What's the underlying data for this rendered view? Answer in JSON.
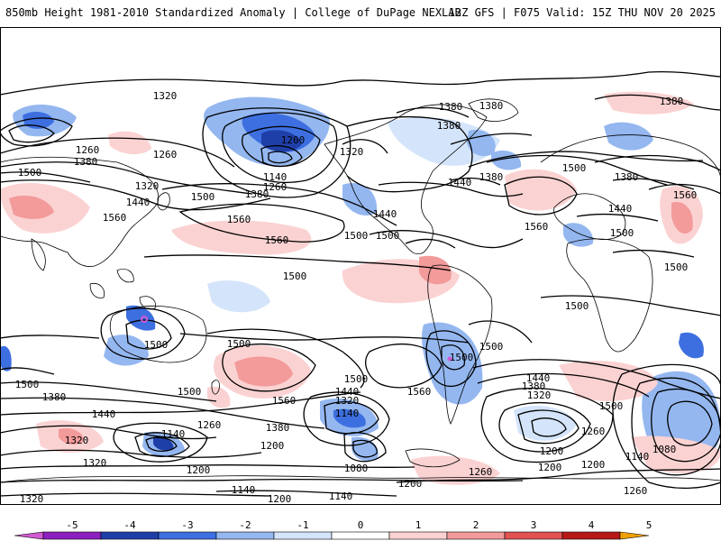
{
  "header": {
    "title": "850mb Height 1981-2010 Standardized Anomaly | College of DuPage NEXLAB",
    "run_info": "12Z GFS | F075 Valid: 15Z THU NOV 20 2025"
  },
  "map": {
    "projection": "global",
    "contour_labels": [
      {
        "id": "c1",
        "text": "1320"
      },
      {
        "id": "c2",
        "text": "1380"
      },
      {
        "id": "c3",
        "text": "1260"
      },
      {
        "id": "c4",
        "text": "1260"
      },
      {
        "id": "c5",
        "text": "1200"
      },
      {
        "id": "c6",
        "text": "1320"
      },
      {
        "id": "c7",
        "text": "1140"
      },
      {
        "id": "c8",
        "text": "1260"
      },
      {
        "id": "c9",
        "text": "1380"
      },
      {
        "id": "c10",
        "text": "1500"
      },
      {
        "id": "c11",
        "text": "1380"
      },
      {
        "id": "c12",
        "text": "1440"
      },
      {
        "id": "c13",
        "text": "1320"
      },
      {
        "id": "c14",
        "text": "1500"
      },
      {
        "id": "c15",
        "text": "1560"
      },
      {
        "id": "c16",
        "text": "1560"
      },
      {
        "id": "c17",
        "text": "1560"
      },
      {
        "id": "c18",
        "text": "1500"
      },
      {
        "id": "c19",
        "text": "1500"
      },
      {
        "id": "c20",
        "text": "1500"
      },
      {
        "id": "c21",
        "text": "1500"
      },
      {
        "id": "c22",
        "text": "1500"
      },
      {
        "id": "c23",
        "text": "1380"
      },
      {
        "id": "c24",
        "text": "1440"
      },
      {
        "id": "c25",
        "text": "1320"
      },
      {
        "id": "c26",
        "text": "1260"
      },
      {
        "id": "c27",
        "text": "1320"
      },
      {
        "id": "c28",
        "text": "1140"
      },
      {
        "id": "c29",
        "text": "1200"
      },
      {
        "id": "c30",
        "text": "1140"
      },
      {
        "id": "c31",
        "text": "1320"
      },
      {
        "id": "c32",
        "text": "1260"
      },
      {
        "id": "c33",
        "text": "1200"
      },
      {
        "id": "c34",
        "text": "1560"
      },
      {
        "id": "c35",
        "text": "1380"
      },
      {
        "id": "c36",
        "text": "1500"
      },
      {
        "id": "c37",
        "text": "1440"
      },
      {
        "id": "c38",
        "text": "1320"
      },
      {
        "id": "c39",
        "text": "1140"
      },
      {
        "id": "c40",
        "text": "1200"
      },
      {
        "id": "c41",
        "text": "1080"
      },
      {
        "id": "c42",
        "text": "1200"
      },
      {
        "id": "c43",
        "text": "1140"
      },
      {
        "id": "c44",
        "text": "1380"
      },
      {
        "id": "c45",
        "text": "1380"
      },
      {
        "id": "c46",
        "text": "1320"
      },
      {
        "id": "c47",
        "text": "1440"
      },
      {
        "id": "c48",
        "text": "1560"
      },
      {
        "id": "c49",
        "text": "1500"
      },
      {
        "id": "c50",
        "text": "1500"
      },
      {
        "id": "c51",
        "text": "1500"
      },
      {
        "id": "c52",
        "text": "1500"
      },
      {
        "id": "c53",
        "text": "1560"
      },
      {
        "id": "c54",
        "text": "1440"
      },
      {
        "id": "c55",
        "text": "1380"
      },
      {
        "id": "c56",
        "text": "1320"
      },
      {
        "id": "c57",
        "text": "1500"
      },
      {
        "id": "c58",
        "text": "1260"
      },
      {
        "id": "c59",
        "text": "1200"
      },
      {
        "id": "c60",
        "text": "1260"
      },
      {
        "id": "c61",
        "text": "1200"
      },
      {
        "id": "c62",
        "text": "1080"
      },
      {
        "id": "c63",
        "text": "1140"
      },
      {
        "id": "c64",
        "text": "1200"
      },
      {
        "id": "c65",
        "text": "1260"
      },
      {
        "id": "c66",
        "text": "1380"
      },
      {
        "id": "c67",
        "text": "1560"
      },
      {
        "id": "c68",
        "text": "1500"
      },
      {
        "id": "c69",
        "text": "1440"
      },
      {
        "id": "c70",
        "text": "1380"
      },
      {
        "id": "c71",
        "text": "1560"
      },
      {
        "id": "c72",
        "text": "1500"
      },
      {
        "id": "c73",
        "text": "1440"
      },
      {
        "id": "c74",
        "text": "1500"
      },
      {
        "id": "c75",
        "text": "1440"
      },
      {
        "id": "c76",
        "text": "1500"
      },
      {
        "id": "c77",
        "text": "1380"
      },
      {
        "id": "c78",
        "text": "1500"
      },
      {
        "id": "c79",
        "text": "1560"
      },
      {
        "id": "c80",
        "text": "1500"
      },
      {
        "id": "c81",
        "text": "1500"
      }
    ]
  },
  "colorbar": {
    "ticks": [
      "-5",
      "-4",
      "-3",
      "-2",
      "-1",
      "0",
      "1",
      "2",
      "3",
      "4",
      "5"
    ],
    "colors": [
      "#d25ad2",
      "#8c1fbf",
      "#1f3fa8",
      "#3d6fe0",
      "#94b7f0",
      "#d4e4fb",
      "#ffffff",
      "#fbd2d2",
      "#f39a9a",
      "#e25252",
      "#b81818",
      "#f0a000"
    ]
  }
}
